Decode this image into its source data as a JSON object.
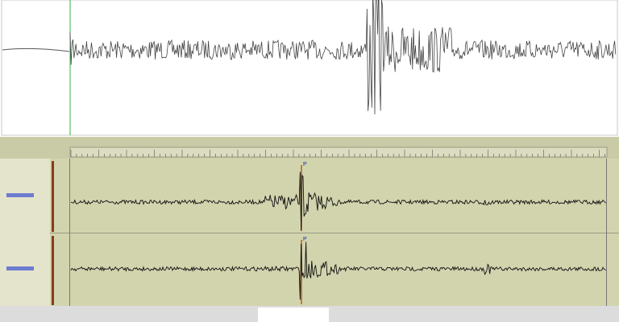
{
  "tracks": [
    {
      "pick": "P"
    },
    {
      "pick": "P"
    }
  ]
}
